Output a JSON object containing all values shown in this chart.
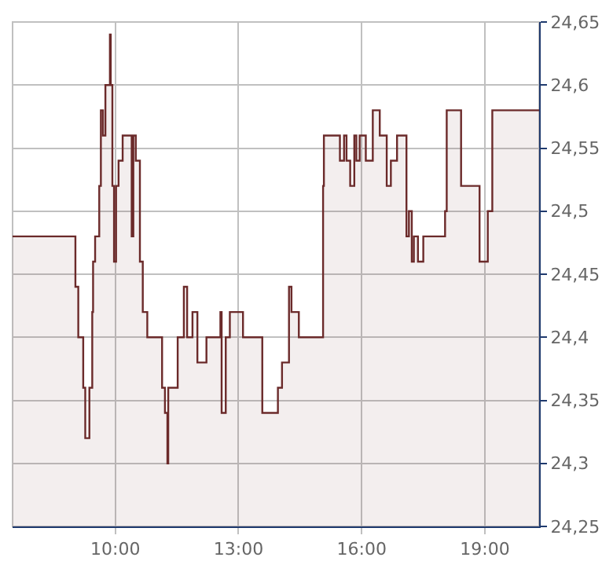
{
  "chart_data": {
    "type": "area",
    "x": [
      7.5,
      9.03,
      9.03,
      9.1,
      9.1,
      9.22,
      9.22,
      9.27,
      9.27,
      9.37,
      9.37,
      9.44,
      9.44,
      9.46,
      9.46,
      9.51,
      9.51,
      9.61,
      9.61,
      9.65,
      9.65,
      9.7,
      9.7,
      9.76,
      9.76,
      9.87,
      9.87,
      9.89,
      9.89,
      9.93,
      9.93,
      9.97,
      9.97,
      10.02,
      10.02,
      10.08,
      10.08,
      10.18,
      10.18,
      10.4,
      10.4,
      10.44,
      10.44,
      10.5,
      10.5,
      10.6,
      10.6,
      10.67,
      10.67,
      10.78,
      10.78,
      11.14,
      11.14,
      11.21,
      11.21,
      11.27,
      11.27,
      11.29,
      11.29,
      11.52,
      11.52,
      11.67,
      11.67,
      11.75,
      11.75,
      11.88,
      11.88,
      12.0,
      12.0,
      12.22,
      12.22,
      12.56,
      12.56,
      12.59,
      12.59,
      12.69,
      12.69,
      12.79,
      12.79,
      13.11,
      13.11,
      13.58,
      13.58,
      13.96,
      13.96,
      14.06,
      14.06,
      14.23,
      14.23,
      14.29,
      14.29,
      14.47,
      14.47,
      15.06,
      15.06,
      15.08,
      15.08,
      15.47,
      15.47,
      15.57,
      15.57,
      15.63,
      15.63,
      15.72,
      15.72,
      15.82,
      15.82,
      15.87,
      15.87,
      15.95,
      15.95,
      16.1,
      16.1,
      16.27,
      16.27,
      16.44,
      16.44,
      16.61,
      16.61,
      16.71,
      16.71,
      16.86,
      16.86,
      17.09,
      17.09,
      17.15,
      17.15,
      17.22,
      17.22,
      17.27,
      17.27,
      17.37,
      17.37,
      17.5,
      17.5,
      18.03,
      18.03,
      18.07,
      18.07,
      18.42,
      18.42,
      18.87,
      18.87,
      19.07,
      19.07,
      19.18,
      19.18,
      20.32
    ],
    "series": [
      {
        "color": "#6b2a2a",
        "values": [
          24.48,
          24.48,
          24.44,
          24.44,
          24.4,
          24.4,
          24.36,
          24.36,
          24.32,
          24.32,
          24.36,
          24.36,
          24.42,
          24.42,
          24.46,
          24.46,
          24.48,
          24.48,
          24.52,
          24.52,
          24.58,
          24.58,
          24.56,
          24.56,
          24.6,
          24.6,
          24.64,
          24.64,
          24.6,
          24.6,
          24.52,
          24.52,
          24.46,
          24.46,
          24.52,
          24.52,
          24.54,
          24.54,
          24.56,
          24.56,
          24.48,
          24.48,
          24.56,
          24.56,
          24.54,
          24.54,
          24.46,
          24.46,
          24.42,
          24.42,
          24.4,
          24.4,
          24.36,
          24.36,
          24.34,
          24.34,
          24.3,
          24.3,
          24.36,
          24.36,
          24.4,
          24.4,
          24.44,
          24.44,
          24.4,
          24.4,
          24.42,
          24.42,
          24.38,
          24.38,
          24.4,
          24.4,
          24.42,
          24.42,
          24.34,
          24.34,
          24.4,
          24.4,
          24.42,
          24.42,
          24.4,
          24.4,
          24.34,
          24.34,
          24.36,
          24.36,
          24.38,
          24.38,
          24.44,
          24.44,
          24.42,
          24.42,
          24.4,
          24.4,
          24.52,
          24.52,
          24.56,
          24.56,
          24.54,
          24.54,
          24.56,
          24.56,
          24.54,
          24.54,
          24.52,
          24.52,
          24.56,
          24.56,
          24.54,
          24.54,
          24.56,
          24.56,
          24.54,
          24.54,
          24.58,
          24.58,
          24.56,
          24.56,
          24.52,
          24.52,
          24.54,
          24.54,
          24.56,
          24.56,
          24.48,
          24.48,
          24.5,
          24.5,
          24.46,
          24.46,
          24.48,
          24.48,
          24.46,
          24.46,
          24.48,
          24.48,
          24.5,
          24.5,
          24.58,
          24.58,
          24.52,
          24.52,
          24.46,
          24.46,
          24.5,
          24.5,
          24.58,
          24.58
        ]
      }
    ],
    "xlim": [
      7.5,
      20.32
    ],
    "xticks": [
      {
        "value": 10,
        "label": "10:00"
      },
      {
        "value": 13,
        "label": "13:00"
      },
      {
        "value": 16,
        "label": "16:00"
      },
      {
        "value": 19,
        "label": "19:00"
      }
    ],
    "ylim": [
      24.25,
      24.65
    ],
    "yticks": [
      {
        "value": 24.25,
        "label": "24,25"
      },
      {
        "value": 24.3,
        "label": "24,3"
      },
      {
        "value": 24.35,
        "label": "24,35"
      },
      {
        "value": 24.4,
        "label": "24,4"
      },
      {
        "value": 24.45,
        "label": "24,45"
      },
      {
        "value": 24.5,
        "label": "24,5"
      },
      {
        "value": 24.55,
        "label": "24,55"
      },
      {
        "value": 24.6,
        "label": "24,6"
      },
      {
        "value": 24.65,
        "label": "24,65"
      }
    ],
    "grid": true,
    "legend": false
  }
}
